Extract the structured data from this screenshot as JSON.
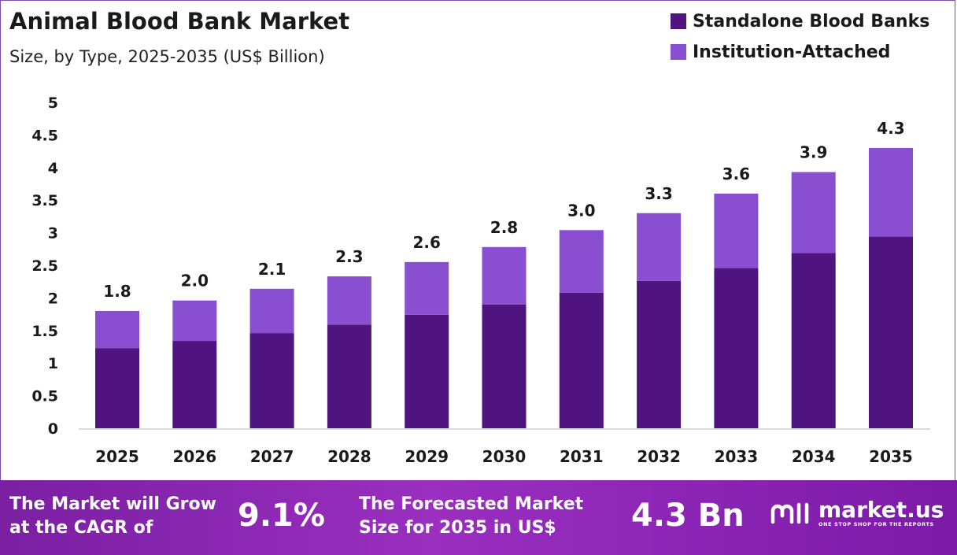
{
  "chart_data": {
    "type": "bar",
    "stacked": true,
    "title": "Animal Blood Bank Market",
    "subtitle": "Size, by Type, 2025-2035 (US$ Billion)",
    "categories": [
      "2025",
      "2026",
      "2027",
      "2028",
      "2029",
      "2030",
      "2031",
      "2032",
      "2033",
      "2034",
      "2035"
    ],
    "series": [
      {
        "name": "Standalone Blood Banks",
        "color": "#4f1480",
        "values": [
          1.23,
          1.34,
          1.46,
          1.59,
          1.74,
          1.9,
          2.08,
          2.26,
          2.46,
          2.69,
          2.94
        ]
      },
      {
        "name": "Institution-Attached",
        "color": "#8a4fd0",
        "values": [
          0.57,
          0.62,
          0.68,
          0.74,
          0.81,
          0.88,
          0.96,
          1.04,
          1.14,
          1.24,
          1.36
        ]
      }
    ],
    "totals_labels": [
      "1.8",
      "2.0",
      "2.1",
      "2.3",
      "2.6",
      "2.8",
      "3.0",
      "3.3",
      "3.6",
      "3.9",
      "4.3"
    ],
    "ylim": [
      0,
      5
    ],
    "yticks": [
      "0",
      "0.5",
      "1",
      "1.5",
      "2",
      "2.5",
      "3",
      "3.5",
      "4",
      "4.5",
      "5"
    ],
    "grid": false,
    "legend_position": "top-right"
  },
  "footer": {
    "cagr_label_line1": "The Market will Grow",
    "cagr_label_line2": "at the CAGR of",
    "cagr_value": "9.1%",
    "forecast_label_line1": "The Forecasted Market",
    "forecast_label_line2": "Size for 2035 in US$",
    "forecast_value": "4.3 Bn",
    "brand_name": "market.us",
    "brand_tagline": "ONE STOP SHOP FOR THE REPORTS"
  }
}
